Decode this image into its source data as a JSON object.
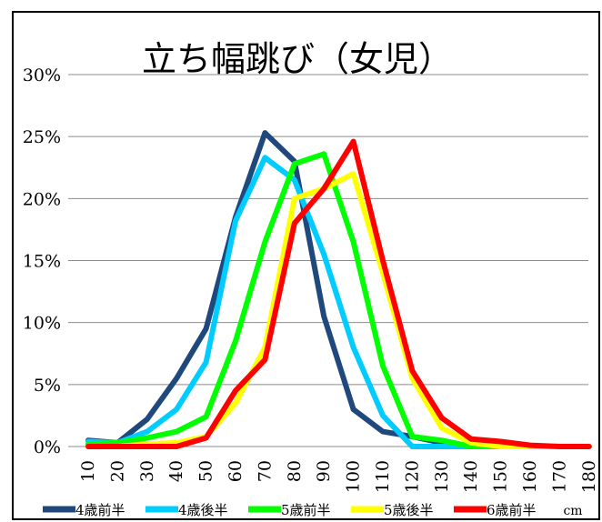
{
  "chart_data": {
    "type": "line",
    "title": "立ち幅跳び（女児）",
    "xlabel": "cm",
    "ylabel": "",
    "x": [
      "10",
      "20",
      "30",
      "40",
      "50",
      "60",
      "70",
      "80",
      "90",
      "100",
      "110",
      "120",
      "130",
      "140",
      "150",
      "160",
      "170",
      "180"
    ],
    "yticks": [
      "0%",
      "5%",
      "10%",
      "15%",
      "20%",
      "25%",
      "30%"
    ],
    "ylim": [
      0,
      30
    ],
    "grid": true,
    "legend_position": "bottom",
    "series": [
      {
        "name": "4歳前半",
        "color": "#1f497d",
        "values": [
          0.5,
          0.3,
          2.2,
          5.5,
          9.5,
          18.5,
          25.3,
          23.0,
          10.5,
          3.0,
          1.2,
          0.8,
          0.3,
          0.0,
          0.0,
          0.0,
          0.0,
          0.0
        ]
      },
      {
        "name": "4歳後半",
        "color": "#00ccff",
        "values": [
          0.4,
          0.3,
          1.2,
          3.0,
          6.8,
          18.2,
          23.3,
          21.5,
          15.5,
          8.0,
          2.5,
          0.0,
          0.0,
          0.0,
          0.0,
          0.0,
          0.0,
          0.0
        ]
      },
      {
        "name": "5歳前半",
        "color": "#00ff00",
        "values": [
          0.2,
          0.3,
          0.7,
          1.2,
          2.4,
          8.5,
          16.5,
          22.8,
          23.6,
          16.5,
          6.5,
          0.8,
          0.5,
          0.0,
          0.0,
          0.0,
          0.0,
          0.0
        ]
      },
      {
        "name": "5歳後半",
        "color": "#ffff00",
        "values": [
          0.0,
          0.0,
          0.2,
          0.3,
          0.8,
          3.5,
          8.0,
          20.0,
          20.8,
          22.0,
          14.0,
          5.5,
          1.5,
          0.3,
          0.0,
          0.0,
          0.0,
          0.0
        ]
      },
      {
        "name": "6歳前半",
        "color": "#ff0000",
        "values": [
          0.0,
          0.0,
          0.0,
          0.0,
          0.7,
          4.5,
          7.0,
          18.0,
          20.8,
          24.6,
          15.0,
          6.1,
          2.3,
          0.6,
          0.4,
          0.1,
          0.0,
          0.0
        ]
      }
    ]
  }
}
